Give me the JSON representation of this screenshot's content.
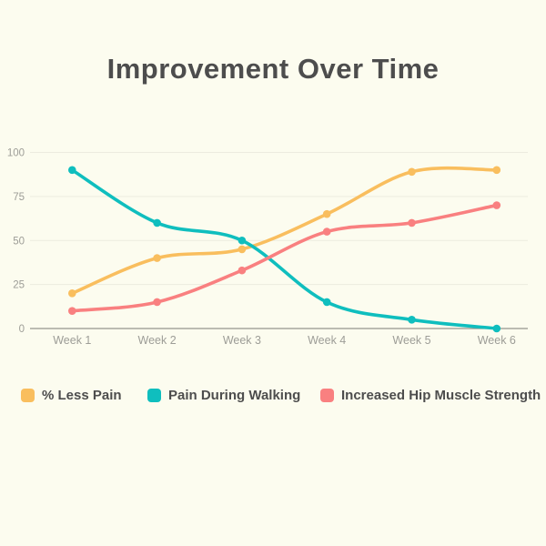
{
  "title": "Improvement Over Time",
  "colors": {
    "background": "#FCFCEF",
    "title_text": "#4D4D4D",
    "legend_text": "#4D4D4D",
    "gridline": "#ECEBDF",
    "axis_line": "#96968D",
    "tick_text": "#9D9D97"
  },
  "chart_data": {
    "type": "line",
    "title": "Improvement Over Time",
    "categories": [
      "Week 1",
      "Week 2",
      "Week 3",
      "Week 4",
      "Week 5",
      "Week 6"
    ],
    "series": [
      {
        "name": "% Less Pain",
        "color": "#F9BE5E",
        "values": [
          20,
          40,
          45,
          65,
          89,
          90
        ]
      },
      {
        "name": "Pain During Walking",
        "color": "#0FBEBE",
        "values": [
          90,
          60,
          50,
          15,
          5,
          0
        ]
      },
      {
        "name": "Increased Hip Muscle Strength",
        "color": "#F98080",
        "values": [
          10,
          15,
          33,
          55,
          60,
          70
        ]
      }
    ],
    "xlabel": "",
    "ylabel": "",
    "ylim": [
      0,
      100
    ],
    "yticks": [
      0,
      25,
      50,
      75,
      100
    ],
    "grid": true,
    "legend_position": "bottom",
    "point_markers": true,
    "curve": "smooth"
  }
}
